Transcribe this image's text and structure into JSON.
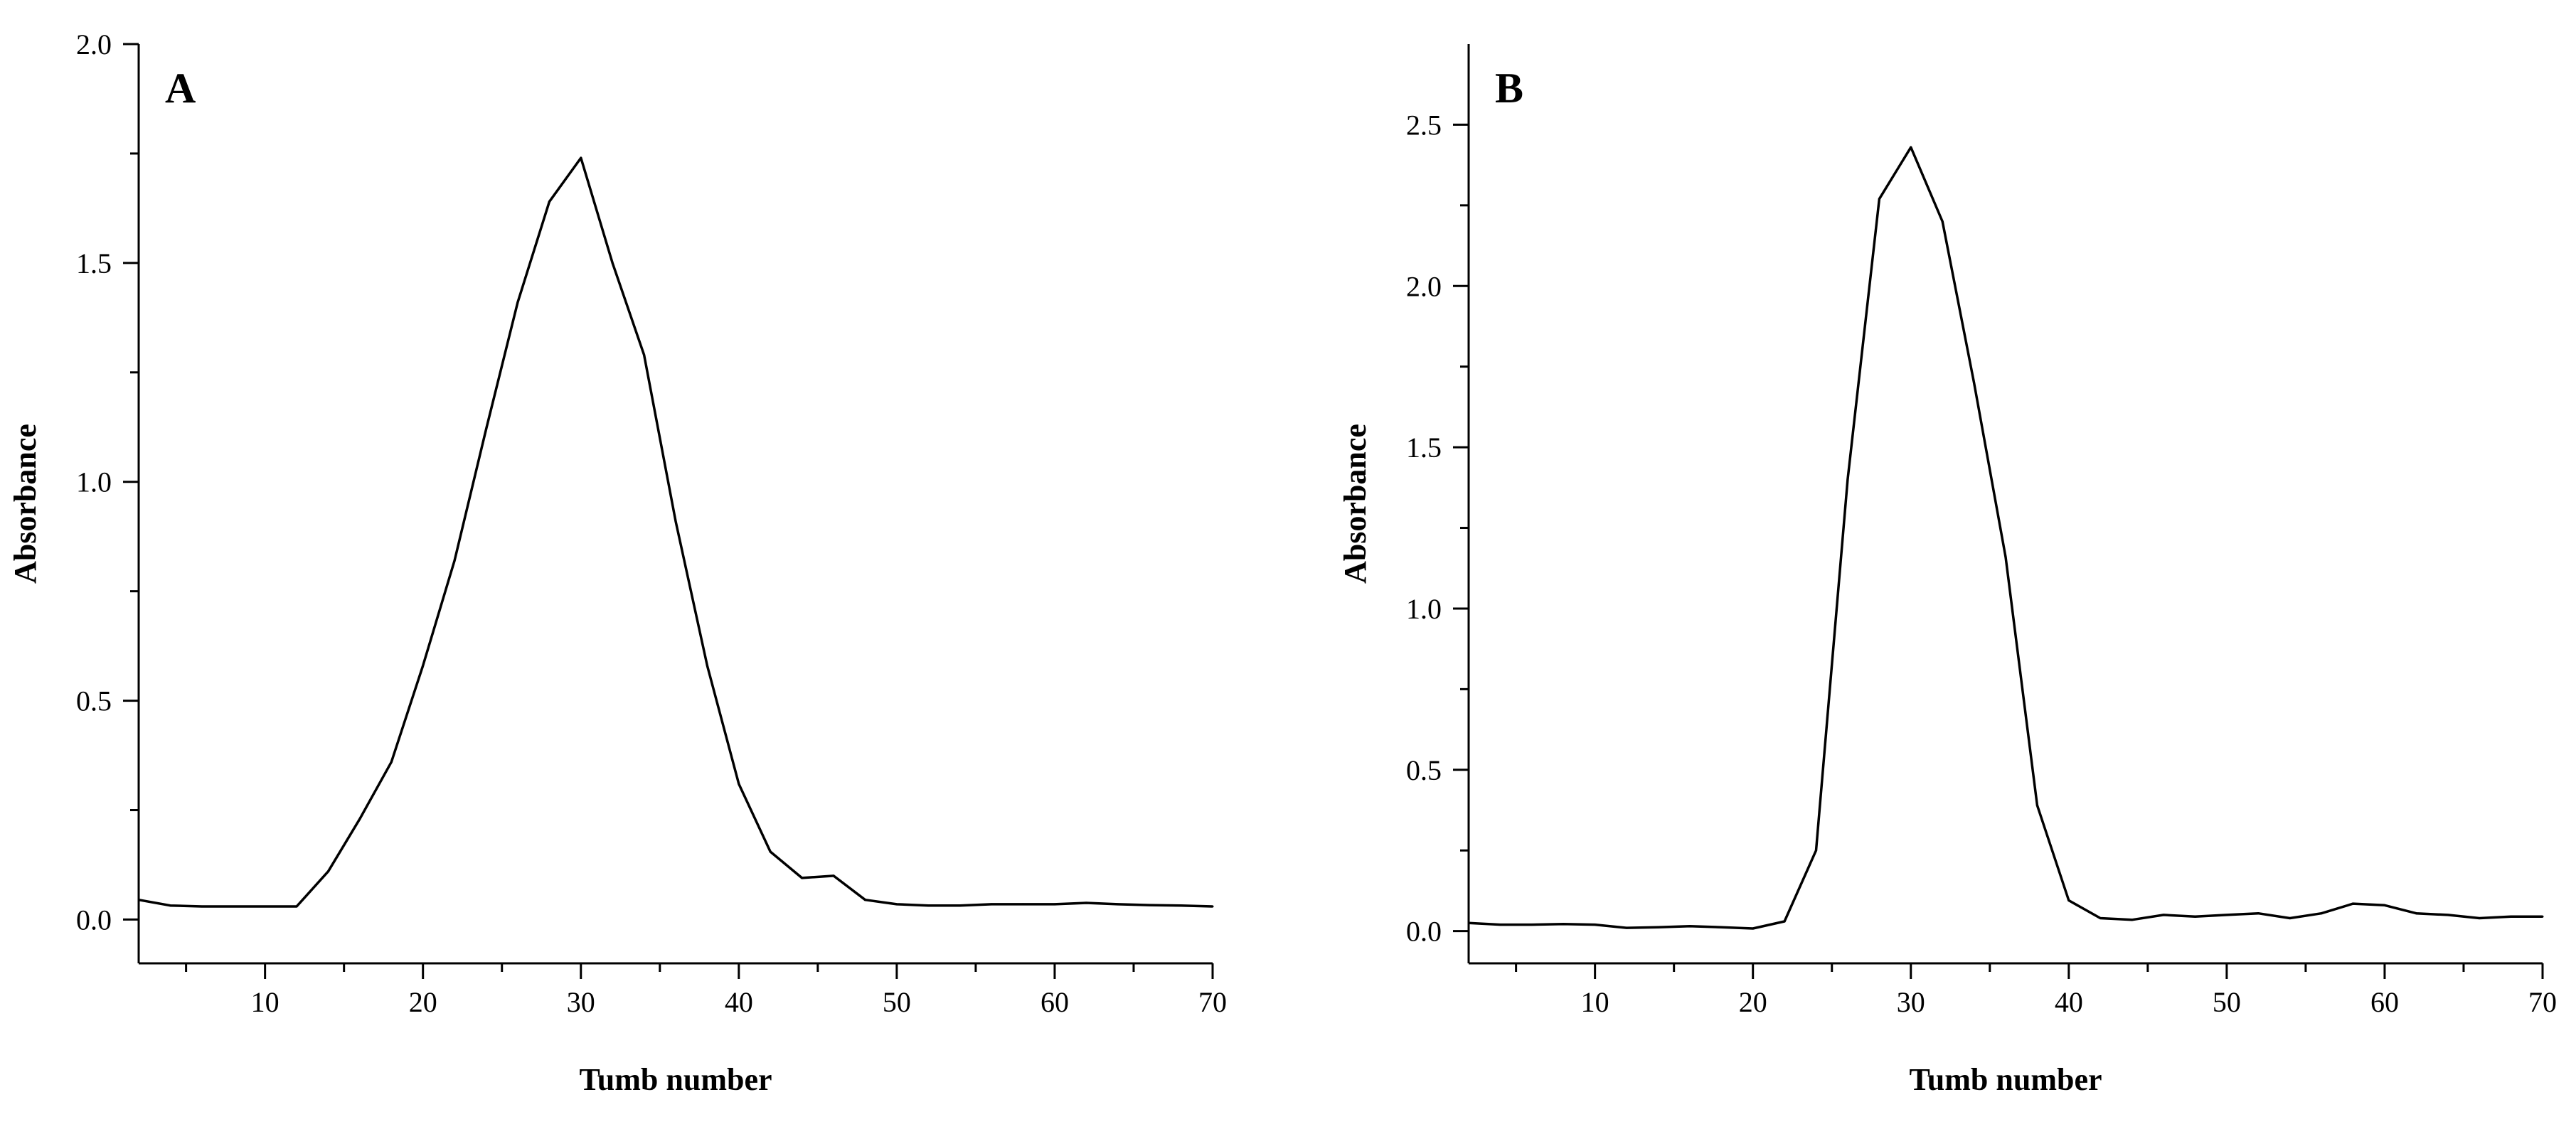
{
  "chart_data": [
    {
      "type": "line",
      "panel_label": "A",
      "xlabel": "Tumb number",
      "ylabel": "Absorbance",
      "xlim": [
        2,
        70
      ],
      "ylim": [
        -0.1,
        2.0
      ],
      "xticks": [
        10,
        20,
        30,
        40,
        50,
        60,
        70
      ],
      "xtick_labels": [
        "10",
        "20",
        "30",
        "40",
        "50",
        "60",
        "70"
      ],
      "yticks": [
        0.0,
        0.5,
        1.0,
        1.5,
        2.0
      ],
      "ytick_labels": [
        "0.0",
        "0.5",
        "1.0",
        "1.5",
        "2.0"
      ],
      "grid": false,
      "series": [
        {
          "x": [
            2,
            4,
            6,
            8,
            10,
            12,
            14,
            16,
            18,
            20,
            22,
            24,
            26,
            28,
            30,
            32,
            34,
            36,
            38,
            40,
            42,
            44,
            46,
            48,
            50,
            52,
            54,
            56,
            58,
            60,
            62,
            64,
            66,
            68,
            70
          ],
          "y": [
            0.045,
            0.032,
            0.03,
            0.03,
            0.03,
            0.03,
            0.11,
            0.23,
            0.36,
            0.58,
            0.82,
            1.12,
            1.41,
            1.64,
            1.74,
            1.5,
            1.29,
            0.91,
            0.58,
            0.31,
            0.155,
            0.095,
            0.1,
            0.045,
            0.035,
            0.032,
            0.032,
            0.035,
            0.035,
            0.035,
            0.038,
            0.035,
            0.033,
            0.032,
            0.03
          ]
        }
      ]
    },
    {
      "type": "line",
      "panel_label": "B",
      "xlabel": "Tumb number",
      "ylabel": "Absorbance",
      "xlim": [
        2,
        70
      ],
      "ylim": [
        -0.1,
        2.75
      ],
      "xticks": [
        10,
        20,
        30,
        40,
        50,
        60,
        70
      ],
      "xtick_labels": [
        "10",
        "20",
        "30",
        "40",
        "50",
        "60",
        "70"
      ],
      "yticks": [
        0.0,
        0.5,
        1.0,
        1.5,
        2.0,
        2.5
      ],
      "ytick_labels": [
        "0.0",
        "0.5",
        "1.0",
        "1.5",
        "2.0",
        "2.5"
      ],
      "grid": false,
      "series": [
        {
          "x": [
            2,
            4,
            6,
            8,
            10,
            12,
            14,
            16,
            18,
            20,
            22,
            24,
            26,
            28,
            30,
            32,
            34,
            36,
            38,
            40,
            42,
            44,
            46,
            48,
            50,
            52,
            54,
            56,
            58,
            60,
            62,
            64,
            66,
            68,
            70
          ],
          "y": [
            0.025,
            0.02,
            0.02,
            0.022,
            0.02,
            0.01,
            0.012,
            0.015,
            0.012,
            0.008,
            0.03,
            0.25,
            1.4,
            2.27,
            2.43,
            2.2,
            1.7,
            1.16,
            0.39,
            0.095,
            0.04,
            0.035,
            0.05,
            0.045,
            0.05,
            0.055,
            0.04,
            0.055,
            0.085,
            0.08,
            0.055,
            0.05,
            0.04,
            0.045,
            0.045
          ]
        }
      ]
    }
  ]
}
